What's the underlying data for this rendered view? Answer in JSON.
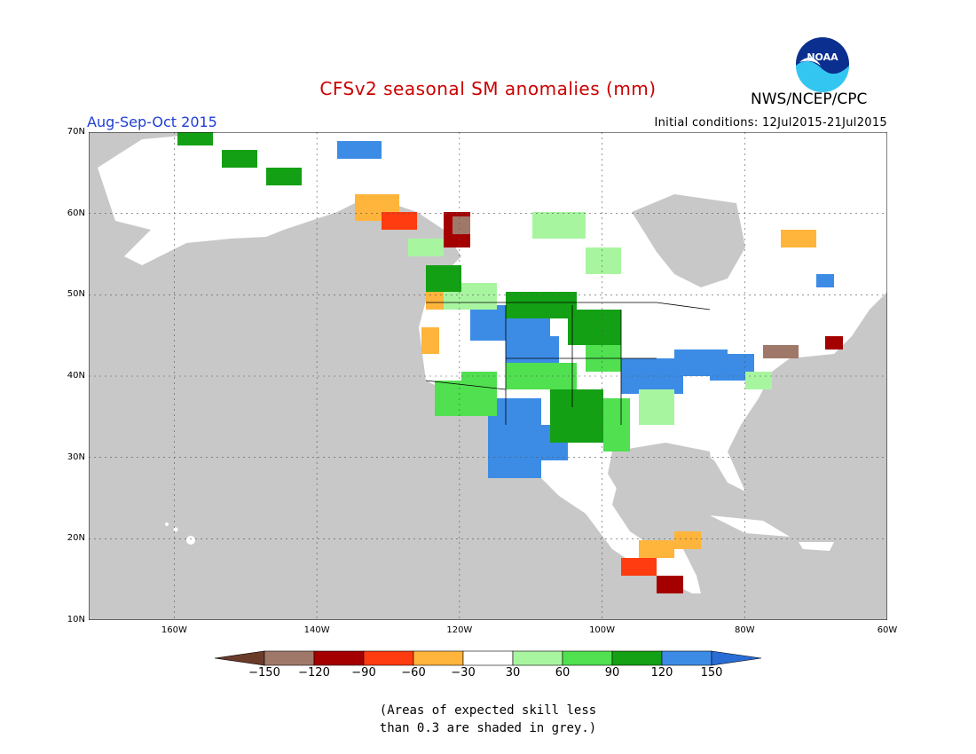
{
  "title": "CFSv2 seasonal SM anomalies (mm)",
  "agency": "NWS/NCEP/CPC",
  "logo_text": "NOAA",
  "season": "Aug-Sep-Oct 2015",
  "initial_conditions": "Initial conditions: 12Jul2015-21Jul2015",
  "note_lines": [
    "(Areas of expected skill less",
    "than 0.3 are shaded in grey.)"
  ],
  "map": {
    "lon_range": [
      -172,
      -60
    ],
    "lat_range": [
      10,
      70
    ],
    "lat_labels": [
      "70N",
      "60N",
      "50N",
      "40N",
      "30N",
      "20N",
      "10N"
    ],
    "lon_labels": [
      "160W",
      "140W",
      "120W",
      "100W",
      "80W",
      "60W"
    ],
    "ocean_color": "#c8c8c8",
    "land_color": "#ffffff"
  },
  "legend": {
    "labels": [
      "−150",
      "−120",
      "−90",
      "−60",
      "−30",
      "30",
      "60",
      "90",
      "120",
      "150"
    ],
    "colors": {
      "lt_-150": "#6b3b2a",
      "-150_-120": "#a0786a",
      "-120_-90": "#a50000",
      "-90_-60": "#ff3b10",
      "-60_-30": "#ffb43c",
      "-30_30": "#ffffff",
      "30_60": "#a8f5a0",
      "60_90": "#50e050",
      "90_120": "#14a014",
      "120_150": "#3c8ce6",
      "gt_150": "#2a6cd6"
    }
  }
}
